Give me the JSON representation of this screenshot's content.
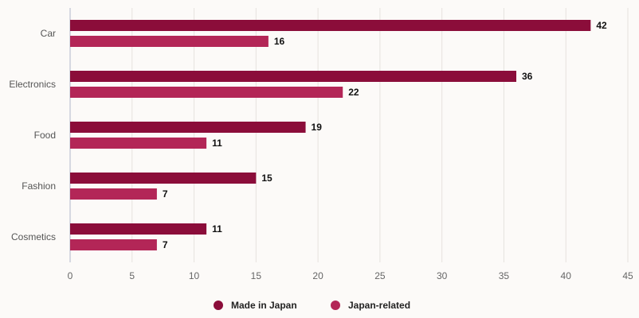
{
  "chart_data": {
    "type": "bar",
    "orientation": "horizontal",
    "title": "",
    "xlabel": "",
    "ylabel": "",
    "categories": [
      "Car",
      "Electronics",
      "Food",
      "Fashion",
      "Cosmetics"
    ],
    "series": [
      {
        "name": "Made in Japan",
        "color": "#8b0d3a",
        "values": [
          42,
          36,
          19,
          15,
          11
        ]
      },
      {
        "name": "Japan-related",
        "color": "#b32657",
        "values": [
          16,
          22,
          11,
          7,
          7
        ]
      }
    ],
    "xlim": [
      0,
      45
    ],
    "x_ticks": [
      "0",
      "5",
      "10",
      "15",
      "20",
      "25",
      "30",
      "35",
      "40",
      "45"
    ],
    "grid": "vertical",
    "data_labels": true,
    "legend_position": "bottom-center"
  }
}
